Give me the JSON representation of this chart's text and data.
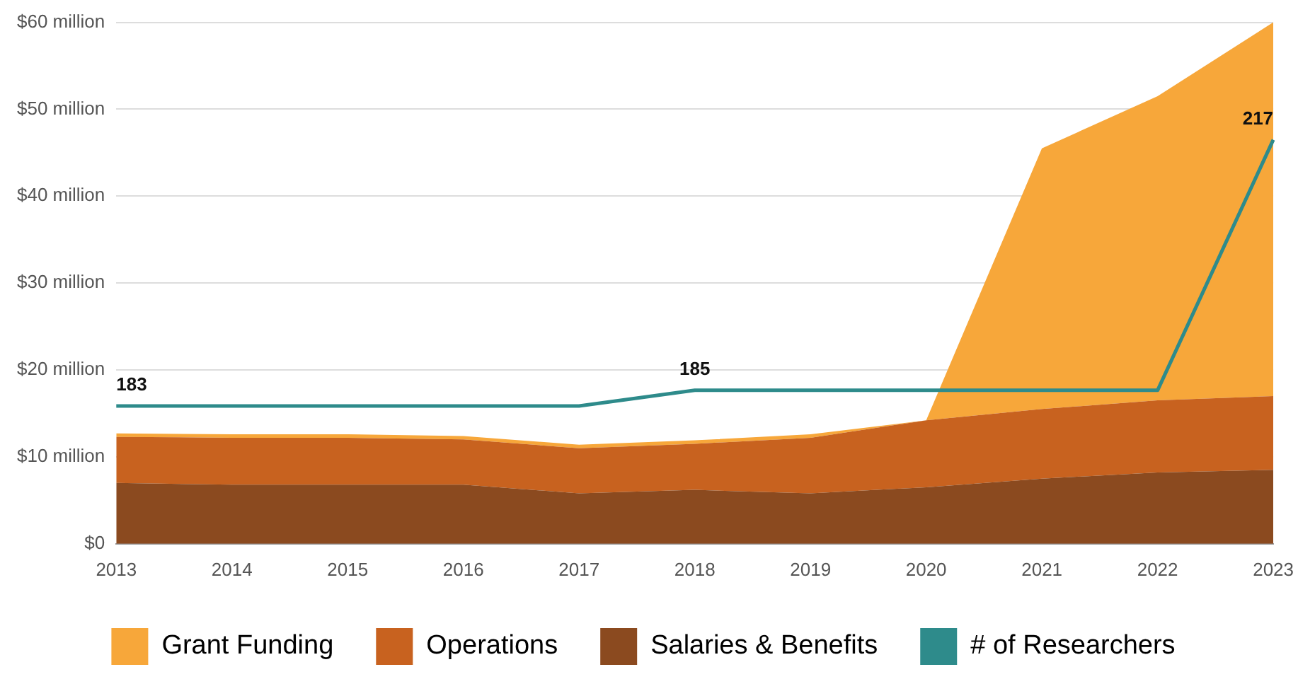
{
  "chart_data": {
    "type": "area",
    "stacked": true,
    "categories": [
      "2013",
      "2014",
      "2015",
      "2016",
      "2017",
      "2018",
      "2019",
      "2020",
      "2021",
      "2022",
      "2023"
    ],
    "series": [
      {
        "name": "Salaries & Benefits",
        "color": "#8b4a1f",
        "values": [
          7,
          6.8,
          6.8,
          6.8,
          5.8,
          6.2,
          5.8,
          6.5,
          7.5,
          8.2,
          8.5
        ]
      },
      {
        "name": "Operations",
        "color": "#c8621f",
        "values": [
          5.3,
          5.4,
          5.4,
          5.2,
          5.2,
          5.3,
          6.4,
          7.7,
          8,
          8.3,
          8.5
        ]
      },
      {
        "name": "Grant Funding",
        "color": "#f7a73a",
        "values": [
          0.4,
          0.4,
          0.4,
          0.4,
          0.4,
          0.4,
          0.4,
          0,
          30,
          35,
          43
        ]
      },
      {
        "name": "# of Researchers",
        "type": "line",
        "axis": "y2",
        "color": "#2e8b8b",
        "values": [
          183,
          183,
          183,
          183,
          183,
          185,
          185,
          185,
          185,
          185,
          217
        ],
        "value_labels": [
          "183",
          null,
          null,
          null,
          null,
          "185",
          null,
          null,
          null,
          null,
          "217"
        ]
      }
    ],
    "ylim": [
      0,
      60
    ],
    "yticks": [
      {
        "value": 0,
        "label": "$0"
      },
      {
        "value": 10,
        "label": "$10 million"
      },
      {
        "value": 20,
        "label": "$20 million"
      },
      {
        "value": 30,
        "label": "$30 million"
      },
      {
        "value": 40,
        "label": "$40 million"
      },
      {
        "value": 50,
        "label": "$50 million"
      },
      {
        "value": 60,
        "label": "$60 million"
      }
    ],
    "y2lim": [
      165.4,
      232
    ],
    "tick_labels": "xy",
    "grid": "y",
    "legend": "bottom",
    "marker": "none"
  }
}
